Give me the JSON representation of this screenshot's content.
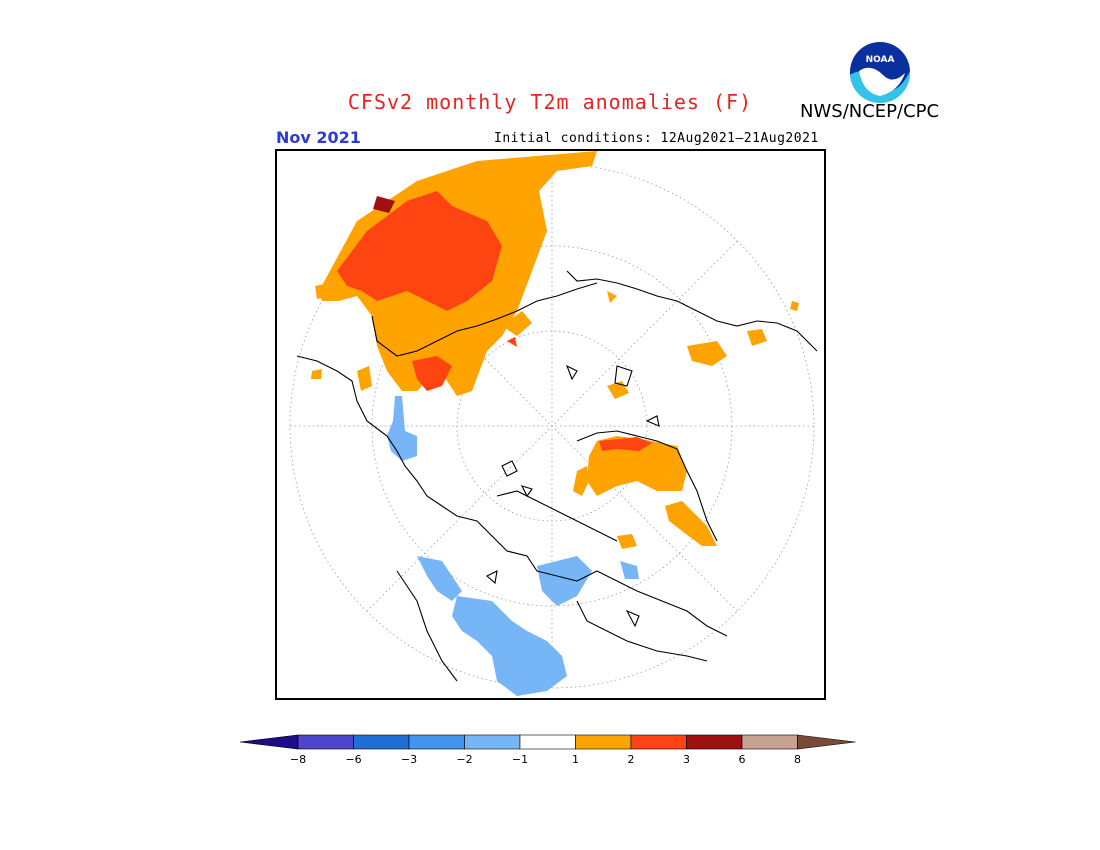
{
  "header": {
    "title": "CFSv2 monthly T2m anomalies (F)",
    "agency": "NWS/NCEP/CPC",
    "logo_text": "NOAA",
    "month": "Nov 2021",
    "initial_conditions": "Initial conditions: 12Aug2021–21Aug2021"
  },
  "colors": {
    "title": "#e8231f",
    "month": "#2d3bd8",
    "orange": "#fea300",
    "red_orange": "#fe4410",
    "dark_red": "#a01010",
    "light_blue": "#77b6f6",
    "pale_orange": "#f8c978"
  },
  "colorbar": {
    "tick_labels": [
      "−8",
      "−6",
      "−3",
      "−2",
      "−1",
      "1",
      "2",
      "3",
      "6",
      "8"
    ],
    "colors": [
      "#1b0e88",
      "#4f44cf",
      "#1e6ed6",
      "#4295ee",
      "#77b6f6",
      "#ffffff",
      "#fea300",
      "#fe4410",
      "#a01010",
      "#c8a291",
      "#7a4a38"
    ]
  }
}
